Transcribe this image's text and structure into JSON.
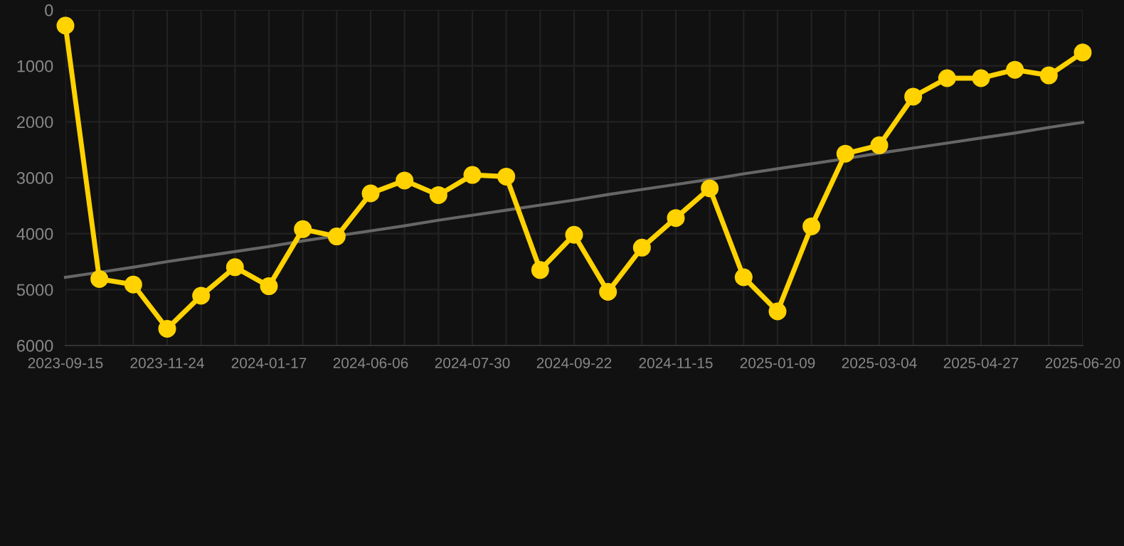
{
  "chart_data": {
    "type": "line",
    "categories": [
      "2023-09-15",
      null,
      null,
      "2023-11-24",
      null,
      null,
      "2024-01-17",
      null,
      null,
      "2024-06-06",
      null,
      null,
      "2024-07-30",
      null,
      null,
      "2024-09-22",
      null,
      null,
      "2024-11-15",
      null,
      null,
      "2025-01-09",
      null,
      null,
      "2025-03-04",
      null,
      null,
      "2025-04-27",
      null,
      null,
      "2025-06-20"
    ],
    "series": [
      {
        "color": "#ffd200",
        "marker": "circle",
        "values": [
          280,
          4810,
          4910,
          5700,
          5110,
          4600,
          4940,
          3920,
          4050,
          3280,
          3050,
          3310,
          2950,
          2980,
          4650,
          4020,
          5040,
          4250,
          3720,
          3190,
          4780,
          5390,
          3870,
          2570,
          2420,
          1550,
          1220,
          1220,
          1070,
          1170,
          760
        ]
      },
      {
        "color": "#666666",
        "marker": "none",
        "values": [
          4780,
          4690,
          4600,
          4500,
          4410,
          4320,
          4230,
          4130,
          4040,
          3950,
          3860,
          3760,
          3670,
          3580,
          3490,
          3400,
          3300,
          3210,
          3120,
          3030,
          2930,
          2840,
          2750,
          2660,
          2560,
          2470,
          2380,
          2290,
          2200,
          2100,
          2010
        ]
      }
    ],
    "ylim": [
      6000,
      0
    ],
    "yticks": [
      0,
      1000,
      2000,
      3000,
      4000,
      5000,
      6000
    ],
    "grid": true,
    "line_style": "solid"
  }
}
